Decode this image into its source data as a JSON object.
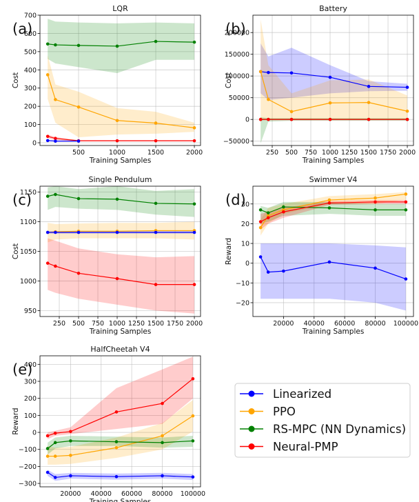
{
  "colors": {
    "Linearized": "#0000ff",
    "PPO": "#ffa500",
    "RS-MPC (NN Dynamics)": "#008000",
    "Neural-PMP": "#ff0000"
  },
  "legend": {
    "location": "lower-right",
    "entries": [
      "Linearized",
      "PPO",
      "RS-MPC (NN Dynamics)",
      "Neural-PMP"
    ]
  },
  "chart_data": [
    {
      "id": "a",
      "letter": "(a)",
      "type": "line",
      "title": "LQR",
      "xlabel": "Training Samples",
      "ylabel": "Cost",
      "xlim": [
        0,
        2080
      ],
      "ylim": [
        -15,
        700
      ],
      "xticks": [
        {
          "v": 500,
          "t": "500"
        },
        {
          "v": 1000,
          "t": "1000"
        },
        {
          "v": 1500,
          "t": "1500"
        },
        {
          "v": 2000,
          "t": "2000"
        }
      ],
      "yticks": [
        {
          "v": 0,
          "t": "0"
        },
        {
          "v": 100,
          "t": "100"
        },
        {
          "v": 200,
          "t": "200"
        },
        {
          "v": 300,
          "t": "300"
        },
        {
          "v": 400,
          "t": "400"
        },
        {
          "v": 500,
          "t": "500"
        },
        {
          "v": 600,
          "t": "600"
        },
        {
          "v": 700,
          "t": "700"
        }
      ],
      "series": [
        {
          "name": "RS-MPC (NN Dynamics)",
          "x": [
            100,
            200,
            500,
            1000,
            1500,
            2000
          ],
          "y": [
            542,
            537,
            534,
            530,
            556,
            552
          ],
          "lo": [
            460,
            435,
            415,
            382,
            455,
            455
          ],
          "hi": [
            680,
            665,
            660,
            655,
            660,
            655
          ]
        },
        {
          "name": "PPO",
          "x": [
            100,
            200,
            500,
            1000,
            1500,
            2000
          ],
          "y": [
            373,
            237,
            196,
            122,
            108,
            82
          ],
          "lo": [
            240,
            110,
            30,
            45,
            50,
            60
          ],
          "hi": [
            480,
            320,
            280,
            190,
            170,
            110
          ]
        },
        {
          "name": "Neural-PMP",
          "x": [
            100,
            200,
            500,
            1000,
            1500,
            2000
          ],
          "y": [
            35,
            24,
            11,
            11,
            11,
            11
          ],
          "lo": [
            25,
            15,
            8,
            8,
            8,
            8
          ],
          "hi": [
            45,
            32,
            14,
            14,
            14,
            14
          ]
        },
        {
          "name": "Linearized",
          "x": [
            100,
            200,
            500
          ],
          "y": [
            12,
            9,
            9
          ],
          "lo": [
            9,
            7,
            7
          ],
          "hi": [
            15,
            11,
            11
          ]
        }
      ]
    },
    {
      "id": "b",
      "letter": "(b)",
      "type": "line",
      "title": "Battery",
      "xlabel": "Training Samples",
      "ylabel": "Cost",
      "xlim": [
        0,
        2080
      ],
      "ylim": [
        -60000,
        240000
      ],
      "xticks": [
        {
          "v": 250,
          "t": "250"
        },
        {
          "v": 500,
          "t": "500"
        },
        {
          "v": 750,
          "t": "750"
        },
        {
          "v": 1000,
          "t": "1000"
        },
        {
          "v": 1250,
          "t": "1250"
        },
        {
          "v": 1500,
          "t": "1500"
        },
        {
          "v": 1750,
          "t": "1750"
        },
        {
          "v": 2000,
          "t": "2000"
        }
      ],
      "yticks": [
        {
          "v": -50000,
          "t": "−50000"
        },
        {
          "v": 0,
          "t": "0"
        },
        {
          "v": 50000,
          "t": "50000"
        },
        {
          "v": 100000,
          "t": "100000"
        },
        {
          "v": 150000,
          "t": "150000"
        },
        {
          "v": 200000,
          "t": "200000"
        }
      ],
      "series": [
        {
          "name": "Linearized",
          "x": [
            100,
            200,
            500,
            1000,
            1500,
            2000
          ],
          "y": [
            110000,
            108000,
            107000,
            97000,
            76000,
            74000
          ],
          "lo": [
            60000,
            45000,
            50000,
            60000,
            65000,
            66000
          ],
          "hi": [
            175000,
            145000,
            165000,
            125000,
            88000,
            82000
          ]
        },
        {
          "name": "PPO",
          "x": [
            100,
            200,
            500,
            1000,
            1500,
            2000
          ],
          "y": [
            110000,
            46000,
            18000,
            38000,
            39000,
            19000
          ],
          "lo": [
            0,
            0,
            0,
            0,
            0,
            0
          ],
          "hi": [
            230000,
            125000,
            60000,
            90000,
            92000,
            55000
          ]
        },
        {
          "name": "RS-MPC (NN Dynamics)",
          "x": [
            100,
            200,
            500,
            1000,
            1500,
            2000
          ],
          "y": [
            0,
            0,
            0,
            0,
            0,
            0
          ],
          "lo": [
            -55000,
            -5000,
            -3000,
            -3000,
            -3000,
            -3000
          ],
          "hi": [
            5000,
            3000,
            3000,
            3000,
            3000,
            3000
          ]
        },
        {
          "name": "Neural-PMP",
          "x": [
            100,
            200,
            500,
            1000,
            1500,
            2000
          ],
          "y": [
            0,
            0,
            0,
            0,
            0,
            0
          ],
          "lo": [
            -2000,
            -2000,
            -2000,
            -2000,
            -2000,
            -2000
          ],
          "hi": [
            2000,
            2000,
            2000,
            2000,
            2000,
            2000
          ]
        }
      ]
    },
    {
      "id": "c",
      "letter": "(c)",
      "type": "line",
      "title": "Single Pendulum",
      "xlabel": "Training Samples",
      "ylabel": "Cost",
      "xlim": [
        0,
        2080
      ],
      "ylim": [
        940,
        1160
      ],
      "xticks": [
        {
          "v": 250,
          "t": "250"
        },
        {
          "v": 500,
          "t": "500"
        },
        {
          "v": 750,
          "t": "750"
        },
        {
          "v": 1000,
          "t": "1000"
        },
        {
          "v": 1250,
          "t": "1250"
        },
        {
          "v": 1500,
          "t": "1500"
        },
        {
          "v": 1750,
          "t": "1750"
        },
        {
          "v": 2000,
          "t": "2000"
        }
      ],
      "yticks": [
        {
          "v": 950,
          "t": "950"
        },
        {
          "v": 1000,
          "t": "1000"
        },
        {
          "v": 1050,
          "t": "1050"
        },
        {
          "v": 1100,
          "t": "1100"
        },
        {
          "v": 1150,
          "t": "1150"
        }
      ],
      "series": [
        {
          "name": "RS-MPC (NN Dynamics)",
          "x": [
            100,
            200,
            500,
            1000,
            1500,
            2000
          ],
          "y": [
            1143,
            1146,
            1139,
            1138,
            1131,
            1130
          ],
          "lo": [
            1120,
            1125,
            1122,
            1120,
            1112,
            1108
          ],
          "hi": [
            1158,
            1160,
            1155,
            1160,
            1152,
            1155
          ]
        },
        {
          "name": "PPO",
          "x": [
            100,
            200,
            500,
            1000,
            1500,
            2000
          ],
          "y": [
            1082,
            1083,
            1084,
            1084,
            1085,
            1085
          ],
          "lo": [
            1065,
            1070,
            1072,
            1072,
            1072,
            1070
          ],
          "hi": [
            1098,
            1096,
            1097,
            1098,
            1098,
            1100
          ]
        },
        {
          "name": "Linearized",
          "x": [
            100,
            200,
            500,
            1000,
            1500,
            2000
          ],
          "y": [
            1082,
            1082,
            1082,
            1082,
            1082,
            1082
          ],
          "lo": [
            1080,
            1080,
            1080,
            1080,
            1080,
            1080
          ],
          "hi": [
            1084,
            1084,
            1084,
            1084,
            1084,
            1084
          ]
        },
        {
          "name": "Neural-PMP",
          "x": [
            100,
            200,
            500,
            1000,
            1500,
            2000
          ],
          "y": [
            1030,
            1025,
            1013,
            1004,
            994,
            994
          ],
          "lo": [
            985,
            980,
            970,
            960,
            950,
            945
          ],
          "hi": [
            1072,
            1068,
            1055,
            1045,
            1040,
            1042
          ]
        }
      ]
    },
    {
      "id": "d",
      "letter": "(d)",
      "type": "line",
      "title": "Swimmer V4",
      "xlabel": "Training Samples",
      "ylabel": "Reward",
      "xlim": [
        0,
        105000
      ],
      "ylim": [
        -27,
        39
      ],
      "xticks": [
        {
          "v": 20000,
          "t": "20000"
        },
        {
          "v": 40000,
          "t": "40000"
        },
        {
          "v": 60000,
          "t": "60000"
        },
        {
          "v": 80000,
          "t": "80000"
        },
        {
          "v": 100000,
          "t": "100000"
        }
      ],
      "yticks": [
        {
          "v": -20,
          "t": "−20"
        },
        {
          "v": -10,
          "t": "−10"
        },
        {
          "v": 0,
          "t": "0"
        },
        {
          "v": 10,
          "t": "10"
        },
        {
          "v": 20,
          "t": "20"
        },
        {
          "v": 30,
          "t": "30"
        }
      ],
      "series": [
        {
          "name": "Linearized",
          "x": [
            5000,
            10000,
            20000,
            50000,
            80000,
            100000
          ],
          "y": [
            3.2,
            -4.5,
            -4,
            0.6,
            -2.5,
            -8
          ],
          "lo": [
            -18,
            -18,
            -18,
            -18,
            -20,
            -24
          ],
          "hi": [
            10,
            10,
            10,
            10,
            9,
            8
          ]
        },
        {
          "name": "PPO",
          "x": [
            5000,
            10000,
            20000,
            50000,
            80000,
            100000
          ],
          "y": [
            18,
            24,
            27,
            32,
            33,
            35
          ],
          "lo": [
            14,
            20,
            25,
            30,
            30,
            32
          ],
          "hi": [
            22,
            28,
            30,
            34,
            35,
            36
          ]
        },
        {
          "name": "RS-MPC (NN Dynamics)",
          "x": [
            5000,
            10000,
            20000,
            50000,
            80000,
            100000
          ],
          "y": [
            27,
            25.5,
            28.5,
            28,
            27,
            27
          ],
          "lo": [
            20,
            21,
            24,
            25,
            24,
            24
          ],
          "hi": [
            29,
            28,
            31,
            31,
            30,
            30
          ]
        },
        {
          "name": "Neural-PMP",
          "x": [
            5000,
            10000,
            20000,
            50000,
            80000,
            100000
          ],
          "y": [
            21,
            23,
            26,
            30.5,
            31,
            31
          ],
          "lo": [
            17,
            20,
            23,
            29.5,
            30,
            30
          ],
          "hi": [
            25,
            26,
            28,
            31.5,
            32,
            32
          ]
        }
      ]
    },
    {
      "id": "e",
      "letter": "(e)",
      "type": "line",
      "title": "HalfCheetah V4",
      "xlabel": "Training Samples",
      "ylabel": "Reward",
      "xlim": [
        0,
        105000
      ],
      "ylim": [
        -320,
        450
      ],
      "xticks": [
        {
          "v": 20000,
          "t": "20000"
        },
        {
          "v": 40000,
          "t": "40000"
        },
        {
          "v": 60000,
          "t": "60000"
        },
        {
          "v": 80000,
          "t": "80000"
        },
        {
          "v": 100000,
          "t": "100000"
        }
      ],
      "yticks": [
        {
          "v": -300,
          "t": "−300"
        },
        {
          "v": -200,
          "t": "−200"
        },
        {
          "v": -100,
          "t": "−100"
        },
        {
          "v": 0,
          "t": "0"
        },
        {
          "v": 100,
          "t": "100"
        },
        {
          "v": 200,
          "t": "200"
        },
        {
          "v": 300,
          "t": "300"
        },
        {
          "v": 400,
          "t": "400"
        }
      ],
      "series": [
        {
          "name": "Linearized",
          "x": [
            5000,
            10000,
            20000,
            50000,
            80000,
            100000
          ],
          "y": [
            -235,
            -265,
            -255,
            -260,
            -255,
            -262
          ],
          "lo": [
            -255,
            -285,
            -272,
            -278,
            -272,
            -280
          ],
          "hi": [
            -220,
            -245,
            -238,
            -242,
            -238,
            -245
          ]
        },
        {
          "name": "PPO",
          "x": [
            5000,
            10000,
            20000,
            50000,
            80000,
            100000
          ],
          "y": [
            -140,
            -140,
            -135,
            -90,
            -20,
            97
          ],
          "lo": [
            -190,
            -190,
            -185,
            -150,
            -100,
            5
          ],
          "hi": [
            -80,
            -90,
            -85,
            -30,
            55,
            190
          ]
        },
        {
          "name": "RS-MPC (NN Dynamics)",
          "x": [
            5000,
            10000,
            20000,
            50000,
            80000,
            100000
          ],
          "y": [
            -95,
            -60,
            -50,
            -55,
            -60,
            -50
          ],
          "lo": [
            -130,
            -95,
            -80,
            -80,
            -90,
            -85
          ],
          "hi": [
            -60,
            -30,
            -20,
            -25,
            -30,
            -20
          ]
        },
        {
          "name": "Neural-PMP",
          "x": [
            5000,
            10000,
            20000,
            50000,
            80000,
            100000
          ],
          "y": [
            -20,
            -5,
            5,
            120,
            170,
            315
          ],
          "lo": [
            -40,
            -20,
            -10,
            20,
            50,
            200
          ],
          "hi": [
            0,
            10,
            30,
            260,
            370,
            445
          ]
        }
      ]
    }
  ]
}
